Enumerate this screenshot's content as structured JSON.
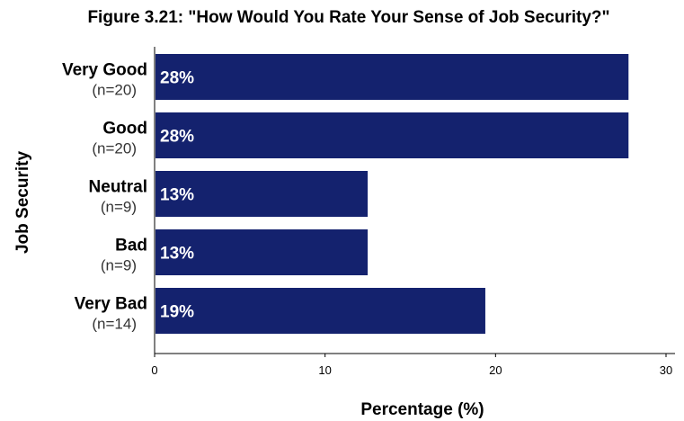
{
  "chart_data": {
    "type": "bar",
    "orientation": "horizontal",
    "title": "Figure 3.21: \"How Would You Rate Your Sense of Job Security?\"",
    "xlabel": "Percentage (%)",
    "ylabel": "Job Security",
    "xlim": [
      0,
      30
    ],
    "xticks": [
      0,
      10,
      20,
      30
    ],
    "grid": false,
    "bar_color": "#14226e",
    "categories": [
      "Very Good",
      "Good",
      "Neutral",
      "Bad",
      "Very Bad"
    ],
    "counts": [
      "(n=20)",
      "(n=20)",
      "(n=9)",
      "(n=9)",
      "(n=14)"
    ],
    "values": [
      27.8,
      27.8,
      12.5,
      12.5,
      19.4
    ],
    "value_labels": [
      "28%",
      "28%",
      "13%",
      "13%",
      "19%"
    ]
  }
}
